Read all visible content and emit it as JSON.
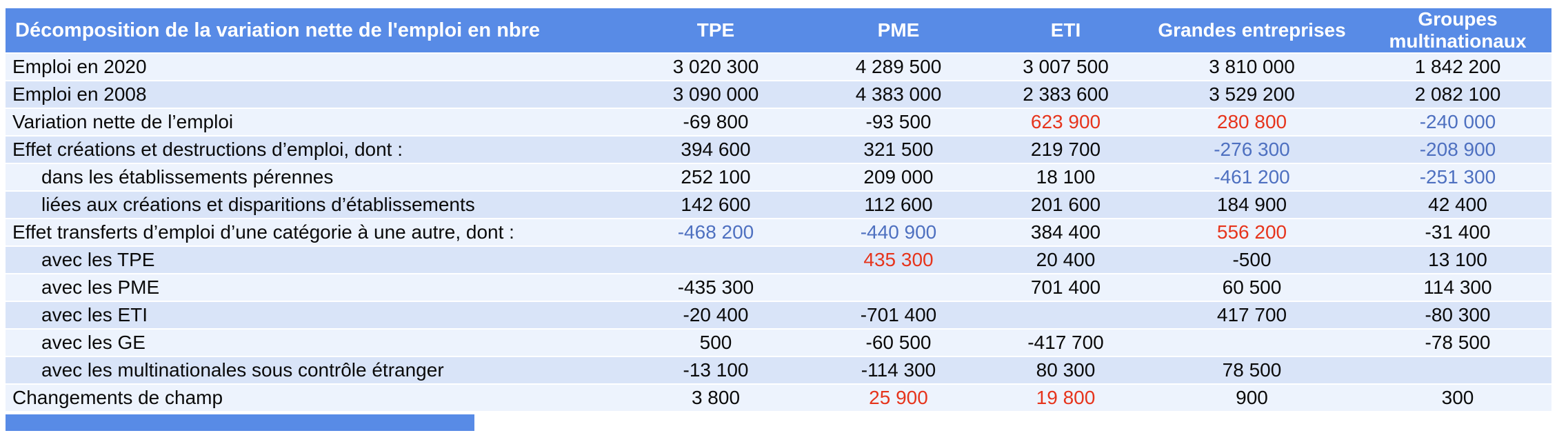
{
  "colors": {
    "header_bg": "#588be6",
    "row_light": "#edf3fd",
    "row_dark": "#d9e4f8",
    "red": "#e6341c",
    "blue": "#4e70c0",
    "text": "#0a0a0a"
  },
  "chart_data": {
    "type": "table",
    "title": "Décomposition de la variation nette de l'emploi en nbre",
    "columns": [
      "TPE",
      "PME",
      "ETI",
      "Grandes entreprises",
      "Groupes multinationaux"
    ],
    "rows": [
      {
        "label": "Emploi en 2020",
        "indent": false,
        "cells": [
          {
            "v": "3 020 300"
          },
          {
            "v": "4 289 500"
          },
          {
            "v": "3 007 500"
          },
          {
            "v": "3 810 000"
          },
          {
            "v": "1 842 200"
          }
        ]
      },
      {
        "label": "Emploi en 2008",
        "indent": false,
        "cells": [
          {
            "v": "3 090 000"
          },
          {
            "v": "4 383 000"
          },
          {
            "v": "2 383 600"
          },
          {
            "v": "3 529 200"
          },
          {
            "v": "2 082 100"
          }
        ]
      },
      {
        "label": "Variation nette de l’emploi",
        "indent": false,
        "cells": [
          {
            "v": "-69 800"
          },
          {
            "v": "-93 500"
          },
          {
            "v": "623 900",
            "c": "red"
          },
          {
            "v": "280 800",
            "c": "red"
          },
          {
            "v": "-240 000",
            "c": "blue"
          }
        ]
      },
      {
        "label": "Effet créations et destructions d’emploi, dont :",
        "indent": false,
        "cells": [
          {
            "v": "394 600"
          },
          {
            "v": "321 500"
          },
          {
            "v": "219 700"
          },
          {
            "v": "-276 300",
            "c": "blue"
          },
          {
            "v": "-208 900",
            "c": "blue"
          }
        ]
      },
      {
        "label": "dans les établissements pérennes",
        "indent": true,
        "cells": [
          {
            "v": "252 100"
          },
          {
            "v": "209 000"
          },
          {
            "v": "18 100"
          },
          {
            "v": "-461 200",
            "c": "blue"
          },
          {
            "v": "-251 300",
            "c": "blue"
          }
        ]
      },
      {
        "label": "liées aux créations et disparitions d’établissements",
        "indent": true,
        "cells": [
          {
            "v": "142 600"
          },
          {
            "v": "112 600"
          },
          {
            "v": "201 600"
          },
          {
            "v": "184 900"
          },
          {
            "v": "42 400"
          }
        ]
      },
      {
        "label": "Effet transferts d’emploi d’une catégorie à une autre, dont :",
        "indent": false,
        "cells": [
          {
            "v": "-468 200",
            "c": "blue"
          },
          {
            "v": "-440 900",
            "c": "blue"
          },
          {
            "v": "384 400"
          },
          {
            "v": "556 200",
            "c": "red"
          },
          {
            "v": "-31 400"
          }
        ]
      },
      {
        "label": "avec les TPE",
        "indent": true,
        "cells": [
          {
            "v": ""
          },
          {
            "v": "435 300",
            "c": "red"
          },
          {
            "v": "20 400"
          },
          {
            "v": "-500"
          },
          {
            "v": "13 100"
          }
        ]
      },
      {
        "label": "avec les PME",
        "indent": true,
        "cells": [
          {
            "v": "-435 300"
          },
          {
            "v": ""
          },
          {
            "v": "701 400"
          },
          {
            "v": "60 500"
          },
          {
            "v": "114 300"
          }
        ]
      },
      {
        "label": "avec les ETI",
        "indent": true,
        "cells": [
          {
            "v": "-20 400"
          },
          {
            "v": "-701 400"
          },
          {
            "v": ""
          },
          {
            "v": "417 700"
          },
          {
            "v": "-80 300"
          }
        ]
      },
      {
        "label": "avec les GE",
        "indent": true,
        "cells": [
          {
            "v": "500"
          },
          {
            "v": "-60 500"
          },
          {
            "v": "-417 700"
          },
          {
            "v": ""
          },
          {
            "v": "-78 500"
          }
        ]
      },
      {
        "label": "avec les multinationales sous contrôle étranger",
        "indent": true,
        "cells": [
          {
            "v": "-13 100"
          },
          {
            "v": "-114 300"
          },
          {
            "v": "80 300"
          },
          {
            "v": "78 500"
          },
          {
            "v": ""
          }
        ]
      },
      {
        "label": "Changements de champ",
        "indent": false,
        "cells": [
          {
            "v": "3 800"
          },
          {
            "v": "25 900",
            "c": "red"
          },
          {
            "v": "19 800",
            "c": "red"
          },
          {
            "v": "900"
          },
          {
            "v": "300"
          }
        ]
      }
    ]
  }
}
